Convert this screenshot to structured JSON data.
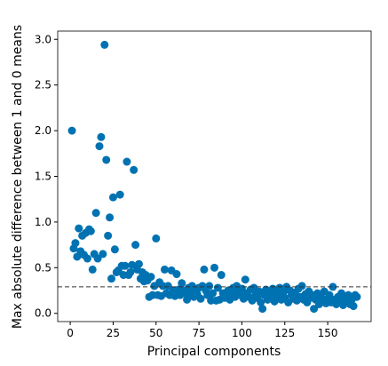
{
  "chart_data": {
    "type": "scatter",
    "xlabel": "Principal components",
    "ylabel": "Max absolute difference between 1 and 0 means",
    "color": "#0072b2",
    "threshold": 0.29,
    "xlim": [
      -7.3,
      175.3
    ],
    "ylim": [
      -0.09,
      3.09
    ],
    "xticks": [
      0,
      25,
      50,
      75,
      100,
      125,
      150
    ],
    "yticks": [
      {
        "value": 0,
        "label": "0.0"
      },
      0.5,
      {
        "value": 1,
        "label": "1.0"
      },
      1.5,
      {
        "value": 2,
        "label": "2.0"
      },
      2.5,
      {
        "value": 3,
        "label": "3.0"
      }
    ],
    "x": [
      1,
      2,
      3,
      4,
      5,
      6,
      7,
      8,
      9,
      10,
      11,
      12,
      13,
      14,
      15,
      16,
      17,
      18,
      19,
      20,
      21,
      22,
      23,
      24,
      25,
      26,
      27,
      28,
      29,
      30,
      31,
      32,
      33,
      34,
      35,
      36,
      37,
      38,
      39,
      40,
      41,
      42,
      43,
      44,
      45,
      46,
      47,
      48,
      49,
      50,
      51,
      52,
      53,
      54,
      55,
      56,
      57,
      58,
      59,
      60,
      61,
      62,
      63,
      64,
      65,
      66,
      67,
      68,
      69,
      70,
      71,
      72,
      73,
      74,
      75,
      76,
      77,
      78,
      79,
      80,
      81,
      82,
      83,
      84,
      85,
      86,
      87,
      88,
      89,
      90,
      91,
      92,
      93,
      94,
      95,
      96,
      97,
      98,
      99,
      100,
      101,
      102,
      103,
      104,
      105,
      106,
      107,
      108,
      109,
      110,
      111,
      112,
      113,
      114,
      115,
      116,
      117,
      118,
      119,
      120,
      121,
      122,
      123,
      124,
      125,
      126,
      127,
      128,
      129,
      130,
      131,
      132,
      133,
      134,
      135,
      136,
      137,
      138,
      139,
      140,
      141,
      142,
      143,
      144,
      145,
      146,
      147,
      148,
      149,
      150,
      151,
      152,
      153,
      154,
      155,
      156,
      157,
      158,
      159,
      160,
      161,
      162,
      163,
      164,
      165,
      166,
      167
    ],
    "values": [
      2.0,
      0.71,
      0.77,
      0.62,
      0.93,
      0.68,
      0.85,
      0.64,
      0.88,
      0.6,
      0.92,
      0.9,
      0.48,
      0.65,
      1.1,
      0.6,
      1.83,
      1.93,
      0.65,
      2.94,
      1.68,
      0.85,
      1.05,
      0.38,
      1.27,
      0.7,
      0.45,
      0.47,
      1.3,
      0.52,
      0.42,
      0.52,
      1.66,
      0.42,
      0.45,
      0.53,
      1.57,
      0.75,
      0.48,
      0.54,
      0.38,
      0.45,
      0.35,
      0.42,
      0.36,
      0.18,
      0.4,
      0.2,
      0.3,
      0.82,
      0.2,
      0.34,
      0.19,
      0.3,
      0.48,
      0.22,
      0.3,
      0.2,
      0.47,
      0.25,
      0.19,
      0.43,
      0.26,
      0.2,
      0.33,
      0.25,
      0.22,
      0.15,
      0.28,
      0.22,
      0.3,
      0.18,
      0.27,
      0.21,
      0.28,
      0.16,
      0.3,
      0.48,
      0.25,
      0.2,
      0.3,
      0.14,
      0.22,
      0.5,
      0.14,
      0.28,
      0.15,
      0.42,
      0.22,
      0.17,
      0.2,
      0.25,
      0.15,
      0.22,
      0.28,
      0.18,
      0.3,
      0.24,
      0.2,
      0.27,
      0.16,
      0.37,
      0.22,
      0.18,
      0.26,
      0.14,
      0.28,
      0.2,
      0.17,
      0.24,
      0.12,
      0.05,
      0.2,
      0.26,
      0.15,
      0.22,
      0.18,
      0.27,
      0.13,
      0.24,
      0.19,
      0.28,
      0.15,
      0.22,
      0.17,
      0.29,
      0.12,
      0.25,
      0.2,
      0.16,
      0.23,
      0.14,
      0.27,
      0.18,
      0.3,
      0.15,
      0.21,
      0.12,
      0.24,
      0.17,
      0.2,
      0.05,
      0.15,
      0.22,
      0.1,
      0.18,
      0.13,
      0.24,
      0.11,
      0.16,
      0.2,
      0.12,
      0.29,
      0.15,
      0.1,
      0.18,
      0.13,
      0.22,
      0.09,
      0.16,
      0.12,
      0.2,
      0.1,
      0.15,
      0.08,
      0.2,
      0.18
    ]
  }
}
